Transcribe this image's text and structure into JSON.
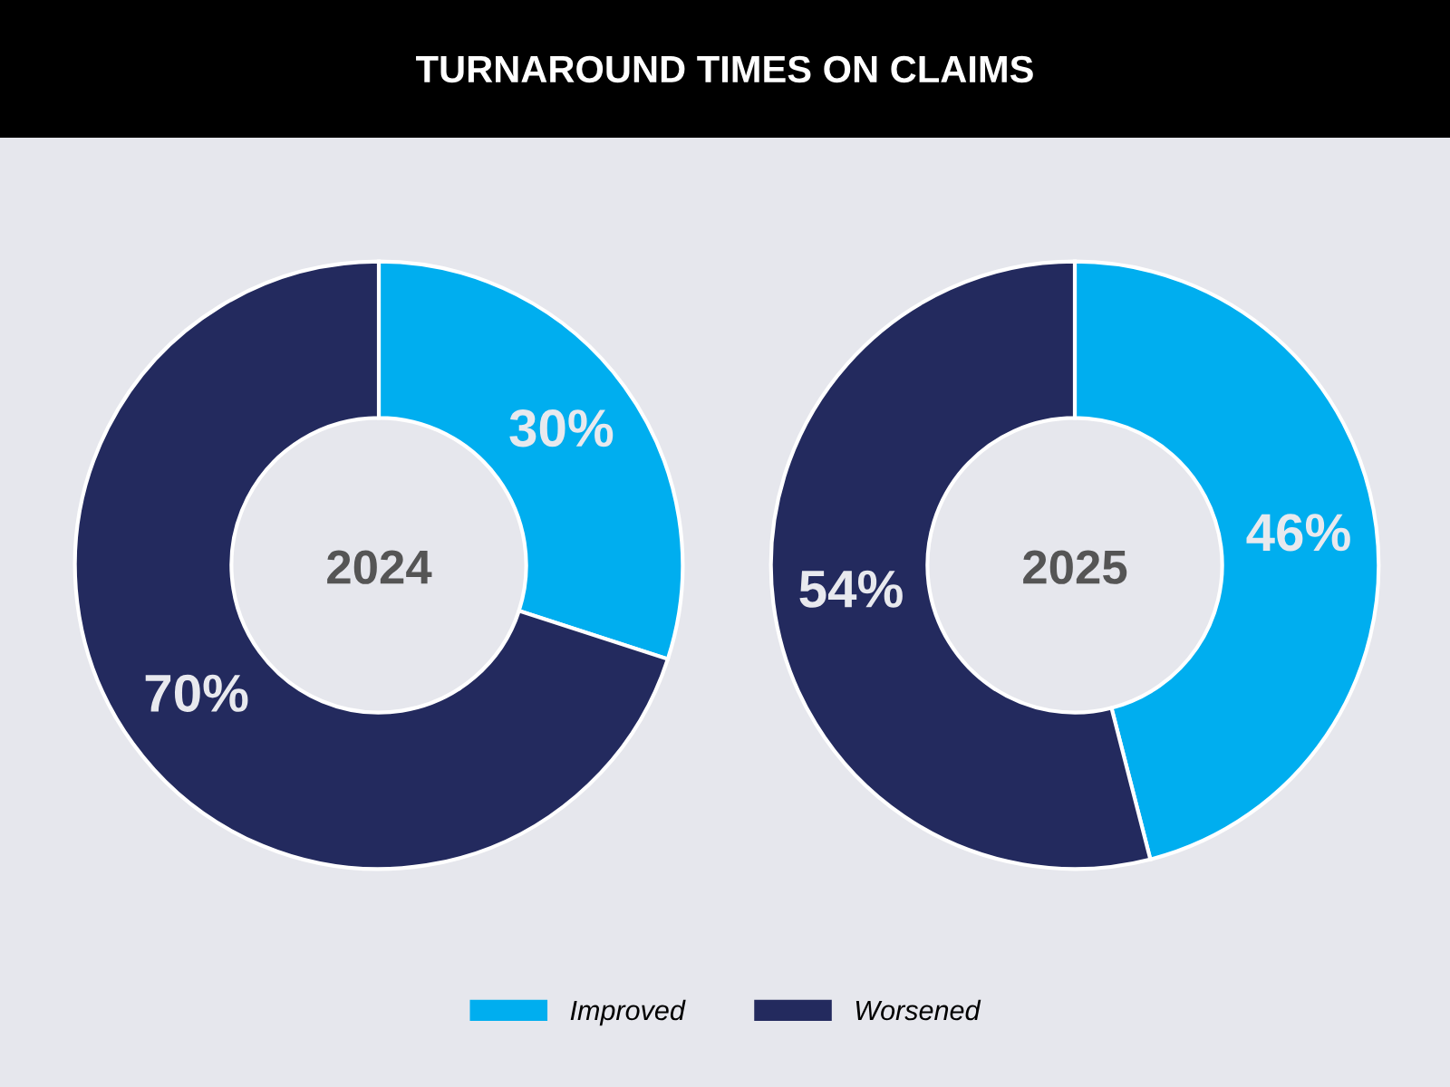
{
  "chart_data": [
    {
      "type": "donut",
      "title": "TURNAROUND TIMES ON CLAIMS",
      "annotations": [
        "2024"
      ],
      "categories": [
        "Improved",
        "Worsened"
      ],
      "values": [
        30,
        70
      ],
      "colors": [
        "#00aeef",
        "#232a5e"
      ],
      "value_labels": [
        "30%",
        "70%"
      ],
      "legend": "bottom"
    },
    {
      "type": "donut",
      "annotations": [
        "2025"
      ],
      "categories": [
        null,
        null
      ],
      "values": [
        46,
        54
      ],
      "colors": [
        "#00aeef",
        "#232a5e"
      ],
      "value_labels": [
        "46%",
        "54%"
      ]
    }
  ]
}
